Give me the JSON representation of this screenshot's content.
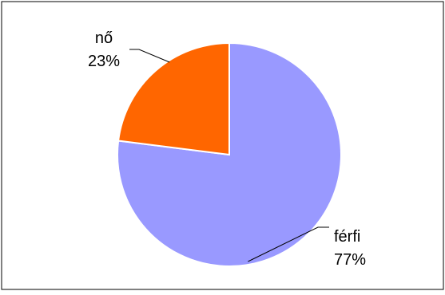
{
  "chart_data": {
    "type": "pie",
    "slices": [
      {
        "label": "férfi",
        "value": 77,
        "value_label": "77%",
        "color": "#9999FF"
      },
      {
        "label": "nő",
        "value": 23,
        "value_label": "23%",
        "color": "#FF6600"
      }
    ],
    "legend": "none"
  }
}
